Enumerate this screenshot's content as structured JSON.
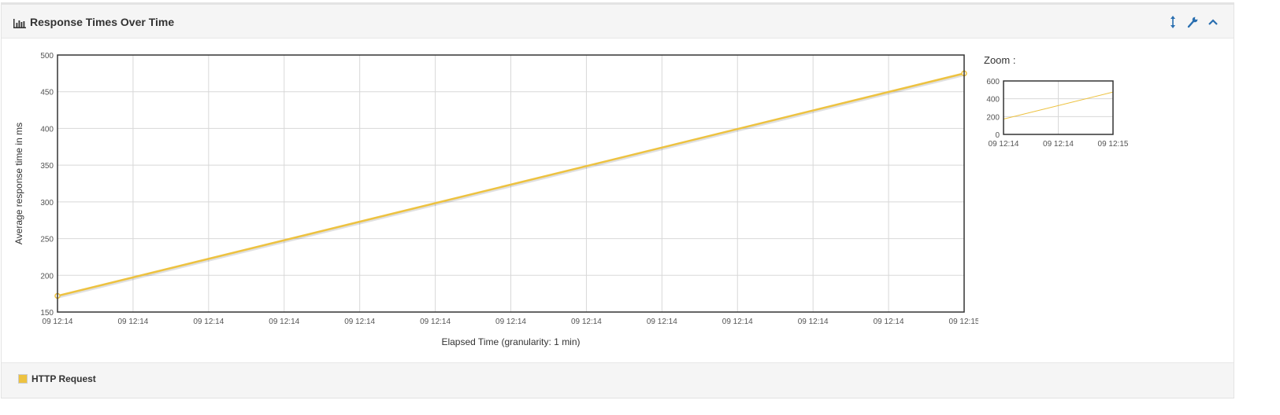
{
  "panel": {
    "title": "Response Times Over Time",
    "title_icon": "bar-chart-icon",
    "tools": [
      {
        "name": "resize-icon"
      },
      {
        "name": "wrench-icon"
      },
      {
        "name": "collapse-chevron-up-icon"
      }
    ]
  },
  "legend": {
    "items": [
      {
        "label": "HTTP Request",
        "color": "#edc240"
      }
    ]
  },
  "zoom": {
    "label": "Zoom :"
  },
  "chart_data": [
    {
      "type": "line",
      "title": "",
      "xlabel": "Elapsed Time (granularity: 1 min)",
      "ylabel": "Average response time in ms",
      "ylim": [
        150,
        500
      ],
      "yticks": [
        150,
        200,
        250,
        300,
        350,
        400,
        450,
        500
      ],
      "xtick_labels": [
        "09 12:14",
        "09 12:14",
        "09 12:14",
        "09 12:14",
        "09 12:14",
        "09 12:14",
        "09 12:14",
        "09 12:14",
        "09 12:14",
        "09 12:14",
        "09 12:14",
        "09 12:14",
        "09 12:15"
      ],
      "grid": true,
      "series": [
        {
          "name": "HTTP Request",
          "color": "#edc240",
          "x": [
            0,
            1
          ],
          "values": [
            172,
            475
          ]
        }
      ]
    },
    {
      "type": "line",
      "title": "",
      "xlabel": "",
      "ylabel": "",
      "ylim": [
        0,
        600
      ],
      "yticks": [
        0,
        200,
        400,
        600
      ],
      "xtick_labels": [
        "09 12:14",
        "09 12:14",
        "09 12:15"
      ],
      "grid": true,
      "series": [
        {
          "name": "HTTP Request",
          "color": "#edc240",
          "x": [
            0,
            1
          ],
          "values": [
            172,
            475
          ]
        }
      ]
    }
  ]
}
